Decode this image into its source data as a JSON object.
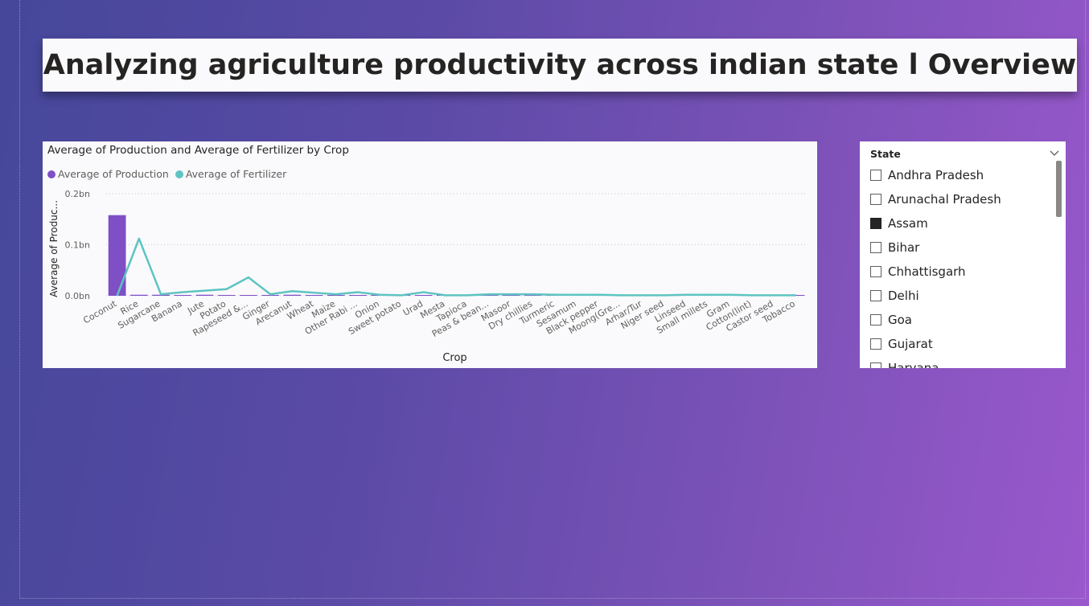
{
  "header": {
    "title": "Analyzing agriculture productivity across indian state l Overview"
  },
  "chart_data": {
    "type": "bar",
    "title": "Average of Production and Average of Fertilizer by Crop",
    "xlabel": "Crop",
    "ylabel": "Average of Produc...",
    "ylim": [
      0,
      0.2
    ],
    "yticks": [
      "0.0bn",
      "0.1bn",
      "0.2bn"
    ],
    "legend_position": "top-left",
    "categories": [
      "Coconut",
      "Rice",
      "Sugarcane",
      "Banana",
      "Jute",
      "Potato",
      "Rapeseed &...",
      "Ginger",
      "Arecanut",
      "Wheat",
      "Maize",
      "Other Rabi ...",
      "Onion",
      "Sweet potato",
      "Urad",
      "Mesta",
      "Tapioca",
      "Peas & bean...",
      "Masoor",
      "Dry chillies",
      "Turmeric",
      "Sesamum",
      "Black pepper",
      "Moong(Gre...",
      "Arhar/Tur",
      "Niger seed",
      "Linseed",
      "Small millets",
      "Gram",
      "Cotton(lint)",
      "Castor seed",
      "Tobacco"
    ],
    "series": [
      {
        "name": "Average of Production",
        "color": "#7f4fc6",
        "kind": "bar",
        "values": [
          0.158,
          0.002,
          0.002,
          0.001,
          0.002,
          0.001,
          0.001,
          0.001,
          0.002,
          0.001,
          0.001,
          0.001,
          0.0005,
          0.0005,
          0.001,
          0.0005,
          0.0005,
          0.0005,
          0.001,
          0.0005,
          0.0005,
          0.0005,
          0.0005,
          0.0003,
          0.0003,
          0.0003,
          0.0003,
          0.0003,
          0.0003,
          0.0003,
          0.0003,
          0.0003
        ]
      },
      {
        "name": "Average of Fertilizer",
        "color": "#5ec4c2",
        "kind": "line",
        "values": [
          0.0,
          0.112,
          0.003,
          0.007,
          0.01,
          0.013,
          0.036,
          0.003,
          0.009,
          0.006,
          0.003,
          0.007,
          0.002,
          0.001,
          0.007,
          0.001,
          0.001,
          0.003,
          0.003,
          0.003,
          0.002,
          0.002,
          0.002,
          0.001,
          0.001,
          0.001,
          0.002,
          0.002,
          0.002,
          0.001,
          0.001,
          0.001
        ]
      }
    ]
  },
  "slicer": {
    "title": "State",
    "items": [
      {
        "label": "Andhra Pradesh",
        "checked": false
      },
      {
        "label": "Arunachal Pradesh",
        "checked": false
      },
      {
        "label": "Assam",
        "checked": true
      },
      {
        "label": "Bihar",
        "checked": false
      },
      {
        "label": "Chhattisgarh",
        "checked": false
      },
      {
        "label": "Delhi",
        "checked": false
      },
      {
        "label": "Goa",
        "checked": false
      },
      {
        "label": "Gujarat",
        "checked": false
      },
      {
        "label": "Haryana",
        "checked": false
      }
    ]
  }
}
